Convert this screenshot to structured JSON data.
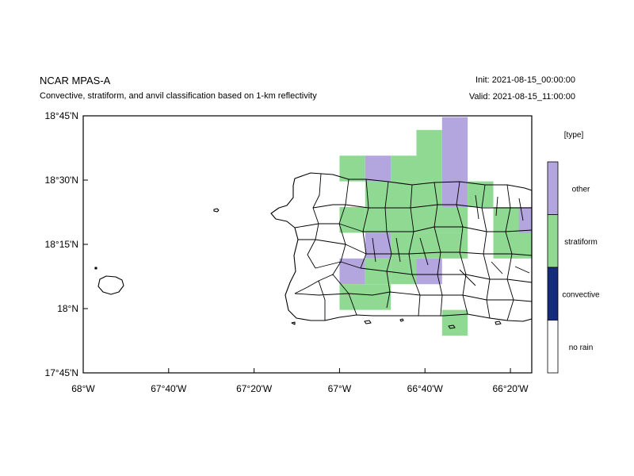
{
  "header": {
    "title": "NCAR MPAS-A",
    "subtitle": "Convective, stratiform, and anvil classification based on 1-km reflectivity",
    "init": "Init: 2021-08-15_00:00:00",
    "valid": "Valid: 2021-08-15_11:00:00"
  },
  "axes": {
    "x_ticks": [
      {
        "value": -68.0,
        "label": "68°W"
      },
      {
        "value": -67.6667,
        "label": "67°40'W"
      },
      {
        "value": -67.3333,
        "label": "67°20'W"
      },
      {
        "value": -67.0,
        "label": "67°W"
      },
      {
        "value": -66.6667,
        "label": "66°40'W"
      },
      {
        "value": -66.3333,
        "label": "66°20'W"
      }
    ],
    "y_ticks": [
      {
        "value": 17.75,
        "label": "17°45'N"
      },
      {
        "value": 18.0,
        "label": "18°N"
      },
      {
        "value": 18.25,
        "label": "18°15'N"
      },
      {
        "value": 18.5,
        "label": "18°30'N"
      },
      {
        "value": 18.75,
        "label": "18°45'N"
      }
    ],
    "lon_range": [
      -68.0,
      -66.25
    ],
    "lat_range": [
      17.75,
      18.75
    ]
  },
  "legend": {
    "title": "[type]",
    "items": [
      {
        "label": "other",
        "color": "#b3a5dd"
      },
      {
        "label": "stratiform",
        "color": "#90d993"
      },
      {
        "label": "convective",
        "color": "#152b7c"
      },
      {
        "label": "no rain",
        "color": "#ffffff"
      }
    ]
  },
  "colors": {
    "stratiform": "#90d993",
    "other": "#b3a5dd",
    "convective": "#152b7c"
  },
  "cells": [
    {
      "type": "stratiform",
      "lon": [
        -67.0,
        -66.9
      ],
      "lat": [
        18.595,
        18.495
      ]
    },
    {
      "type": "other",
      "lon": [
        -66.9,
        -66.8
      ],
      "lat": [
        18.595,
        18.495
      ]
    },
    {
      "type": "stratiform",
      "lon": [
        -66.8,
        -66.7
      ],
      "lat": [
        18.595,
        18.495
      ]
    },
    {
      "type": "stratiform",
      "lon": [
        -66.7,
        -66.6
      ],
      "lat": [
        18.695,
        18.495
      ]
    },
    {
      "type": "other",
      "lon": [
        -66.6,
        -66.5
      ],
      "lat": [
        18.745,
        18.395
      ]
    },
    {
      "type": "stratiform",
      "lon": [
        -66.5,
        -66.4
      ],
      "lat": [
        18.495,
        18.395
      ]
    },
    {
      "type": "stratiform",
      "lon": [
        -66.9,
        -66.6
      ],
      "lat": [
        18.495,
        18.395
      ]
    },
    {
      "type": "stratiform",
      "lon": [
        -67.0,
        -66.9
      ],
      "lat": [
        18.395,
        18.295
      ]
    },
    {
      "type": "stratiform",
      "lon": [
        -66.9,
        -66.5
      ],
      "lat": [
        18.395,
        18.295
      ]
    },
    {
      "type": "stratiform",
      "lon": [
        -66.4,
        -66.25
      ],
      "lat": [
        18.395,
        18.195
      ]
    },
    {
      "type": "other",
      "lon": [
        -66.3,
        -66.25
      ],
      "lat": [
        18.395,
        18.295
      ]
    },
    {
      "type": "stratiform",
      "lon": [
        -66.8,
        -66.5
      ],
      "lat": [
        18.295,
        18.195
      ]
    },
    {
      "type": "other",
      "lon": [
        -66.9,
        -66.8
      ],
      "lat": [
        18.295,
        18.195
      ]
    },
    {
      "type": "other",
      "lon": [
        -67.0,
        -66.9
      ],
      "lat": [
        18.195,
        18.095
      ]
    },
    {
      "type": "stratiform",
      "lon": [
        -66.9,
        -66.8
      ],
      "lat": [
        18.195,
        18.095
      ]
    },
    {
      "type": "stratiform",
      "lon": [
        -66.8,
        -66.7
      ],
      "lat": [
        18.195,
        18.095
      ]
    },
    {
      "type": "other",
      "lon": [
        -66.7,
        -66.6
      ],
      "lat": [
        18.195,
        18.095
      ]
    },
    {
      "type": "stratiform",
      "lon": [
        -67.0,
        -66.8
      ],
      "lat": [
        18.095,
        17.995
      ]
    },
    {
      "type": "stratiform",
      "lon": [
        -66.6,
        -66.5
      ],
      "lat": [
        17.995,
        17.895
      ]
    }
  ]
}
